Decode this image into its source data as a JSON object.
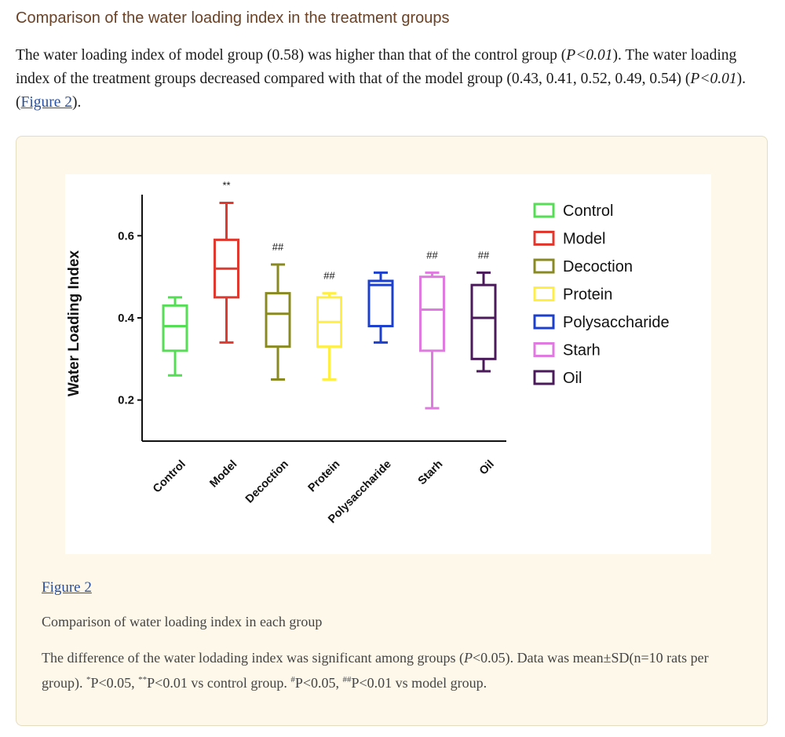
{
  "section_title": "Comparison of the water loading index in the treatment groups",
  "paragraph": {
    "part1": "The water loading index of model group (0.58) was higher than that of the control group (",
    "p1": "P<0.01",
    "part2": "). The water loading index of the treatment groups decreased compared with that of the model group (0.43, 0.41, 0.52, 0.49, 0.54) (",
    "p2": "P<0.01",
    "part3": "). (",
    "link": "Figure 2",
    "part4": ")."
  },
  "figure": {
    "label": "Figure 2",
    "subtitle": "Comparison of water loading index in each group",
    "caption": {
      "c1": "The difference of the water lodading index was significant among groups (",
      "p": "P",
      "c2": "<0.05). Data was mean±SD(n=10 rats per group). ",
      "sup1": "*",
      "c3": "P<0.05, ",
      "sup2": "**",
      "c4": "P<0.01 vs control group. ",
      "sup3": "#",
      "c5": "P<0.05, ",
      "sup4": "##",
      "c6": "P<0.01 vs model group."
    }
  },
  "chart_data": {
    "type": "box",
    "title": "",
    "xlabel": "",
    "ylabel": "Water Loading Index",
    "ylim": [
      0.1,
      0.7
    ],
    "yticks": [
      0.2,
      0.4,
      0.6
    ],
    "ytick_labels": [
      "0.2",
      "0.4",
      "0.6"
    ],
    "grid": false,
    "legend_position": "right",
    "categories": [
      "Control",
      "Model",
      "Decoction",
      "Protein",
      "Polysaccharide",
      "Starh",
      "Oil"
    ],
    "series": [
      {
        "name": "Control",
        "color": "#55dd55",
        "min": 0.26,
        "q1": 0.32,
        "median": 0.38,
        "q3": 0.43,
        "max": 0.45,
        "annotation": ""
      },
      {
        "name": "Model",
        "color": "#e03a30",
        "min": 0.34,
        "q1": 0.45,
        "median": 0.52,
        "q3": 0.59,
        "max": 0.68,
        "annotation": "**"
      },
      {
        "name": "Decoction",
        "color": "#8a8a22",
        "min": 0.25,
        "q1": 0.33,
        "median": 0.41,
        "q3": 0.46,
        "max": 0.53,
        "annotation": "##"
      },
      {
        "name": "Protein",
        "color": "#ffee44",
        "min": 0.25,
        "q1": 0.33,
        "median": 0.39,
        "q3": 0.45,
        "max": 0.46,
        "annotation": "##"
      },
      {
        "name": "Polysaccharide",
        "color": "#1c3fcc",
        "min": 0.34,
        "q1": 0.38,
        "median": 0.48,
        "q3": 0.49,
        "max": 0.51,
        "annotation": ""
      },
      {
        "name": "Starh",
        "color": "#e07ae0",
        "min": 0.18,
        "q1": 0.32,
        "median": 0.42,
        "q3": 0.5,
        "max": 0.51,
        "annotation": "##"
      },
      {
        "name": "Oil",
        "color": "#4a1a5a",
        "min": 0.27,
        "q1": 0.3,
        "median": 0.4,
        "q3": 0.48,
        "max": 0.51,
        "annotation": "##"
      }
    ]
  }
}
